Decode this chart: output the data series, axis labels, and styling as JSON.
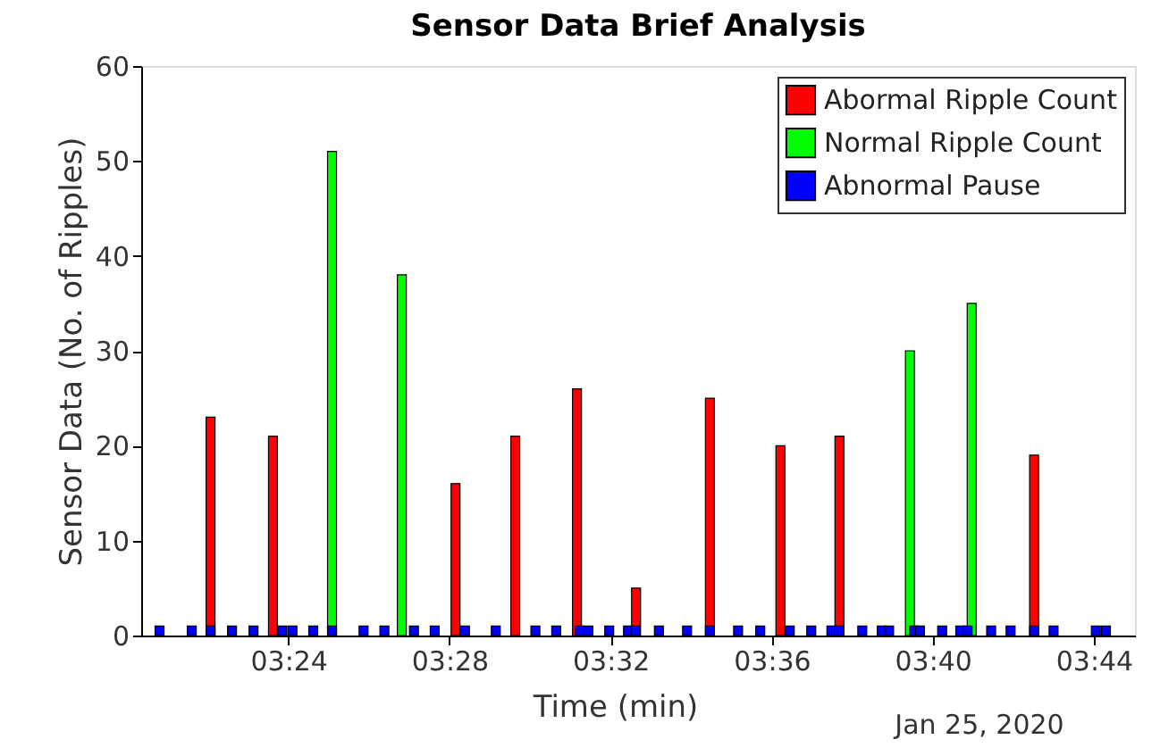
{
  "chart_data": {
    "type": "bar",
    "title": "Sensor Data Brief Analysis",
    "xlabel": "Time (min)",
    "ylabel": "Sensor Data (No. of Ripples)",
    "annotations": [
      "Jan 25, 2020"
    ],
    "xlim": [
      "2020-01-25T03:20:34",
      "2020-01-25T03:44:48"
    ],
    "xticks": [
      {
        "value": "2020-01-25T03:24",
        "label": "03:24"
      },
      {
        "value": "2020-01-25T03:28",
        "label": "03:28"
      },
      {
        "value": "2020-01-25T03:32",
        "label": "03:32"
      },
      {
        "value": "2020-01-25T03:36",
        "label": "03:36"
      },
      {
        "value": "2020-01-25T03:40",
        "label": "03:40"
      },
      {
        "value": "2020-01-25T03:44",
        "label": "03:44"
      }
    ],
    "ylim": [
      0,
      60
    ],
    "yticks": [
      0,
      10,
      20,
      30,
      40,
      50,
      60
    ],
    "grid": false,
    "legend": "top right",
    "series": [
      {
        "name": "Abormal Ripple Count",
        "color": "#ff0000",
        "x": [
          "2020-01-25T03:22:04",
          "2020-01-25T03:23:37",
          "2020-01-25T03:28:09",
          "2020-01-25T03:29:38",
          "2020-01-25T03:31:10",
          "2020-01-25T03:32:38",
          "2020-01-25T03:34:28",
          "2020-01-25T03:36:13",
          "2020-01-25T03:37:41",
          "2020-01-25T03:42:31"
        ],
        "values": [
          23,
          21,
          16,
          21,
          26,
          5,
          25,
          20,
          21,
          19
        ]
      },
      {
        "name": "Normal Ripple Count",
        "color": "#00ff00",
        "x": [
          "2020-01-25T03:25:05",
          "2020-01-25T03:26:49",
          "2020-01-25T03:39:26",
          "2020-01-25T03:40:58"
        ],
        "values": [
          51,
          38,
          30,
          35
        ]
      },
      {
        "name": "Abnormal Pause",
        "color": "#0000ff",
        "x": [
          "2020-01-25T03:20:48",
          "2020-01-25T03:21:36",
          "2020-01-25T03:22:04",
          "2020-01-25T03:22:36",
          "2020-01-25T03:23:08",
          "2020-01-25T03:23:51",
          "2020-01-25T03:24:06",
          "2020-01-25T03:24:37",
          "2020-01-25T03:25:05",
          "2020-01-25T03:25:52",
          "2020-01-25T03:26:23",
          "2020-01-25T03:27:07",
          "2020-01-25T03:27:38",
          "2020-01-25T03:28:23",
          "2020-01-25T03:29:09",
          "2020-01-25T03:30:08",
          "2020-01-25T03:30:39",
          "2020-01-25T03:31:14",
          "2020-01-25T03:31:27",
          "2020-01-25T03:31:58",
          "2020-01-25T03:32:26",
          "2020-01-25T03:32:37",
          "2020-01-25T03:33:12",
          "2020-01-25T03:33:54",
          "2020-01-25T03:34:28",
          "2020-01-25T03:35:10",
          "2020-01-25T03:35:43",
          "2020-01-25T03:36:27",
          "2020-01-25T03:36:59",
          "2020-01-25T03:37:29",
          "2020-01-25T03:37:40",
          "2020-01-25T03:38:15",
          "2020-01-25T03:38:44",
          "2020-01-25T03:38:55",
          "2020-01-25T03:39:32",
          "2020-01-25T03:39:41",
          "2020-01-25T03:40:14",
          "2020-01-25T03:40:41",
          "2020-01-25T03:40:52",
          "2020-01-25T03:41:27",
          "2020-01-25T03:41:56",
          "2020-01-25T03:42:31",
          "2020-01-25T03:43:00",
          "2020-01-25T03:44:03",
          "2020-01-25T03:44:18"
        ],
        "values": [
          1,
          1,
          1,
          1,
          1,
          1,
          1,
          1,
          1,
          1,
          1,
          1,
          1,
          1,
          1,
          1,
          1,
          1,
          1,
          1,
          1,
          1,
          1,
          1,
          1,
          1,
          1,
          1,
          1,
          1,
          1,
          1,
          1,
          1,
          1,
          1,
          1,
          1,
          1,
          1,
          1,
          1,
          1,
          1,
          1
        ]
      }
    ]
  }
}
